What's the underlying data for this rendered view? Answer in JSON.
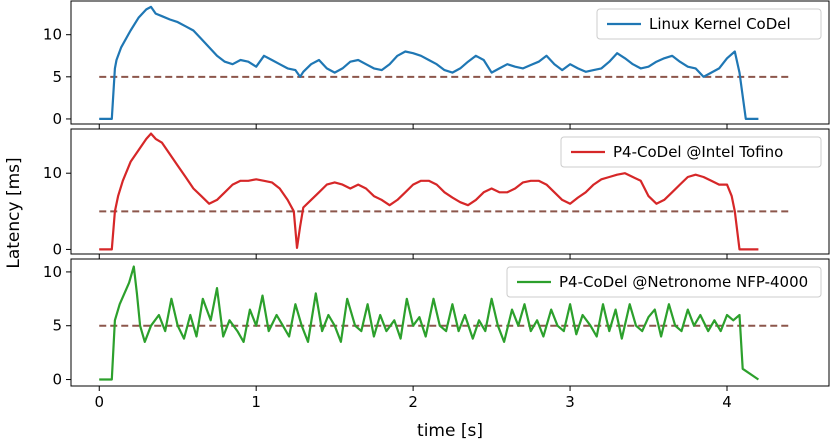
{
  "figure": {
    "ylabel": "Latency [ms]",
    "xlabel": "time [s]"
  },
  "colors": {
    "threshold": "#8c564b",
    "legend_border": "#cccccc",
    "axes": "#000000"
  },
  "chart_data": [
    {
      "type": "line",
      "legend": "Linux Kernel CoDel",
      "color": "#1f77b4",
      "legend_position": "top-right",
      "xlim": [
        -0.18,
        4.65
      ],
      "ylim": [
        -0.6,
        14.0
      ],
      "yticks": [
        0,
        5,
        10
      ],
      "ytick_labels": [
        "0",
        "5",
        "10"
      ],
      "target_ms": 5,
      "target_x": [
        0.0,
        4.4
      ],
      "x": [
        0,
        0.08,
        0.1,
        0.11,
        0.14,
        0.2,
        0.25,
        0.3,
        0.33,
        0.36,
        0.4,
        0.45,
        0.5,
        0.55,
        0.6,
        0.65,
        0.7,
        0.75,
        0.8,
        0.85,
        0.9,
        0.95,
        1.0,
        1.05,
        1.1,
        1.15,
        1.2,
        1.25,
        1.28,
        1.3,
        1.35,
        1.4,
        1.45,
        1.5,
        1.55,
        1.6,
        1.65,
        1.7,
        1.75,
        1.8,
        1.85,
        1.9,
        1.95,
        2.0,
        2.05,
        2.1,
        2.15,
        2.2,
        2.25,
        2.3,
        2.35,
        2.4,
        2.45,
        2.5,
        2.55,
        2.6,
        2.65,
        2.7,
        2.75,
        2.8,
        2.85,
        2.9,
        2.95,
        3.0,
        3.05,
        3.1,
        3.15,
        3.2,
        3.25,
        3.3,
        3.35,
        3.4,
        3.45,
        3.5,
        3.55,
        3.6,
        3.65,
        3.7,
        3.75,
        3.8,
        3.85,
        3.9,
        3.95,
        4.0,
        4.05,
        4.08,
        4.12,
        4.2
      ],
      "y": [
        0,
        0,
        6.0,
        7.0,
        8.5,
        10.5,
        12.0,
        13.0,
        13.3,
        12.5,
        12.2,
        11.8,
        11.5,
        11.0,
        10.5,
        9.5,
        8.5,
        7.5,
        6.8,
        6.5,
        7.0,
        6.8,
        6.2,
        7.5,
        7.0,
        6.5,
        6.0,
        5.8,
        5.0,
        5.6,
        6.5,
        7.0,
        6.0,
        5.5,
        6.0,
        6.8,
        7.0,
        6.5,
        6.0,
        5.8,
        6.5,
        7.5,
        8.0,
        7.8,
        7.5,
        7.0,
        6.5,
        5.8,
        5.5,
        6.0,
        6.8,
        7.5,
        7.0,
        5.5,
        6.0,
        6.5,
        6.2,
        6.0,
        6.4,
        6.8,
        7.5,
        6.5,
        5.8,
        6.5,
        6.0,
        5.6,
        5.8,
        6.0,
        6.8,
        7.8,
        7.2,
        6.5,
        6.0,
        6.2,
        6.8,
        7.2,
        7.5,
        6.8,
        6.2,
        6.0,
        5.0,
        5.5,
        6.0,
        7.2,
        8.0,
        5.5,
        0,
        0
      ]
    },
    {
      "type": "line",
      "legend": "P4-CoDel @Intel Tofino",
      "color": "#d62728",
      "legend_position": "top-right",
      "xlim": [
        -0.18,
        4.65
      ],
      "ylim": [
        -0.6,
        15.8
      ],
      "yticks": [
        0,
        10
      ],
      "ytick_labels": [
        "0",
        "10"
      ],
      "target_ms": 5,
      "target_x": [
        0.0,
        4.4
      ],
      "x": [
        0,
        0.08,
        0.1,
        0.12,
        0.15,
        0.2,
        0.25,
        0.3,
        0.33,
        0.36,
        0.4,
        0.45,
        0.5,
        0.55,
        0.6,
        0.65,
        0.7,
        0.75,
        0.8,
        0.85,
        0.9,
        0.95,
        1.0,
        1.05,
        1.1,
        1.15,
        1.2,
        1.24,
        1.26,
        1.28,
        1.3,
        1.35,
        1.4,
        1.45,
        1.5,
        1.55,
        1.6,
        1.65,
        1.7,
        1.75,
        1.8,
        1.85,
        1.9,
        1.95,
        2.0,
        2.05,
        2.1,
        2.15,
        2.2,
        2.25,
        2.3,
        2.35,
        2.4,
        2.45,
        2.5,
        2.55,
        2.6,
        2.65,
        2.7,
        2.75,
        2.8,
        2.85,
        2.9,
        2.95,
        3.0,
        3.05,
        3.1,
        3.15,
        3.2,
        3.25,
        3.3,
        3.35,
        3.4,
        3.45,
        3.5,
        3.55,
        3.6,
        3.65,
        3.7,
        3.75,
        3.8,
        3.85,
        3.9,
        3.95,
        4.0,
        4.03,
        4.05,
        4.08,
        4.2
      ],
      "y": [
        0,
        0,
        5.0,
        7.0,
        9.0,
        11.5,
        13.0,
        14.5,
        15.2,
        14.5,
        14.0,
        12.5,
        11.0,
        9.5,
        8.0,
        7.0,
        6.0,
        6.5,
        7.5,
        8.5,
        9.0,
        9.0,
        9.2,
        9.0,
        8.8,
        8.0,
        6.5,
        5.0,
        0.2,
        3.0,
        5.5,
        6.5,
        7.5,
        8.5,
        8.8,
        8.5,
        8.0,
        8.5,
        8.0,
        7.0,
        6.5,
        5.8,
        6.5,
        7.5,
        8.5,
        9.0,
        9.0,
        8.5,
        7.5,
        6.8,
        6.2,
        5.8,
        6.5,
        7.5,
        8.0,
        7.5,
        7.5,
        8.0,
        8.8,
        9.0,
        9.0,
        8.5,
        7.5,
        6.5,
        6.0,
        6.8,
        7.5,
        8.5,
        9.2,
        9.5,
        9.8,
        10.0,
        9.5,
        9.0,
        7.0,
        6.0,
        6.5,
        7.5,
        8.5,
        9.5,
        9.8,
        9.5,
        9.0,
        8.5,
        8.5,
        7.0,
        5.0,
        0,
        0
      ]
    },
    {
      "type": "line",
      "legend": "P4-CoDel @Netronome NFP-4000",
      "color": "#2ca02c",
      "legend_position": "top-right",
      "xlim": [
        -0.18,
        4.65
      ],
      "ylim": [
        -0.6,
        11.2
      ],
      "yticks": [
        0,
        5,
        10
      ],
      "ytick_labels": [
        "0",
        "5",
        "10"
      ],
      "xticks": [
        0,
        1,
        2,
        3,
        4
      ],
      "xtick_labels": [
        "0",
        "1",
        "2",
        "3",
        "4"
      ],
      "target_ms": 5,
      "target_x": [
        0.0,
        4.4
      ],
      "x": [
        0,
        0.08,
        0.1,
        0.13,
        0.16,
        0.19,
        0.22,
        0.24,
        0.26,
        0.29,
        0.33,
        0.38,
        0.42,
        0.46,
        0.5,
        0.54,
        0.58,
        0.62,
        0.66,
        0.71,
        0.75,
        0.79,
        0.83,
        0.88,
        0.92,
        0.96,
        1.0,
        1.04,
        1.08,
        1.13,
        1.17,
        1.21,
        1.25,
        1.29,
        1.33,
        1.38,
        1.42,
        1.46,
        1.5,
        1.54,
        1.58,
        1.63,
        1.67,
        1.71,
        1.75,
        1.79,
        1.83,
        1.88,
        1.92,
        1.96,
        2.0,
        2.04,
        2.08,
        2.13,
        2.17,
        2.21,
        2.25,
        2.29,
        2.33,
        2.38,
        2.42,
        2.46,
        2.5,
        2.54,
        2.58,
        2.63,
        2.67,
        2.71,
        2.75,
        2.79,
        2.83,
        2.88,
        2.92,
        2.96,
        3.0,
        3.04,
        3.08,
        3.13,
        3.17,
        3.21,
        3.25,
        3.29,
        3.33,
        3.38,
        3.42,
        3.46,
        3.5,
        3.54,
        3.58,
        3.63,
        3.67,
        3.71,
        3.75,
        3.79,
        3.83,
        3.88,
        3.92,
        3.96,
        4.0,
        4.04,
        4.08,
        4.1,
        4.2
      ],
      "y": [
        0,
        0,
        5.5,
        7.0,
        8.0,
        9.0,
        10.5,
        8.0,
        5.0,
        3.5,
        5.0,
        6.0,
        4.5,
        7.5,
        5.0,
        3.8,
        6.0,
        4.0,
        7.5,
        5.5,
        8.5,
        4.0,
        5.5,
        4.5,
        3.5,
        6.5,
        5.0,
        7.8,
        4.5,
        6.0,
        5.0,
        4.0,
        7.0,
        5.0,
        3.5,
        8.0,
        4.5,
        6.0,
        5.0,
        3.5,
        7.5,
        5.0,
        4.5,
        7.0,
        4.0,
        6.0,
        4.5,
        5.5,
        3.8,
        7.5,
        5.0,
        5.8,
        4.0,
        7.5,
        5.0,
        4.5,
        7.0,
        4.5,
        6.0,
        3.8,
        5.5,
        4.5,
        7.5,
        5.0,
        3.5,
        6.5,
        5.0,
        7.0,
        4.5,
        5.5,
        4.0,
        6.5,
        5.0,
        4.5,
        7.0,
        4.2,
        6.0,
        5.0,
        4.0,
        7.0,
        4.5,
        6.5,
        3.8,
        7.0,
        5.0,
        4.5,
        5.8,
        6.5,
        4.0,
        7.0,
        5.0,
        4.5,
        6.5,
        5.0,
        6.0,
        4.5,
        5.5,
        4.5,
        6.0,
        5.5,
        6.0,
        1.0,
        0
      ]
    }
  ]
}
